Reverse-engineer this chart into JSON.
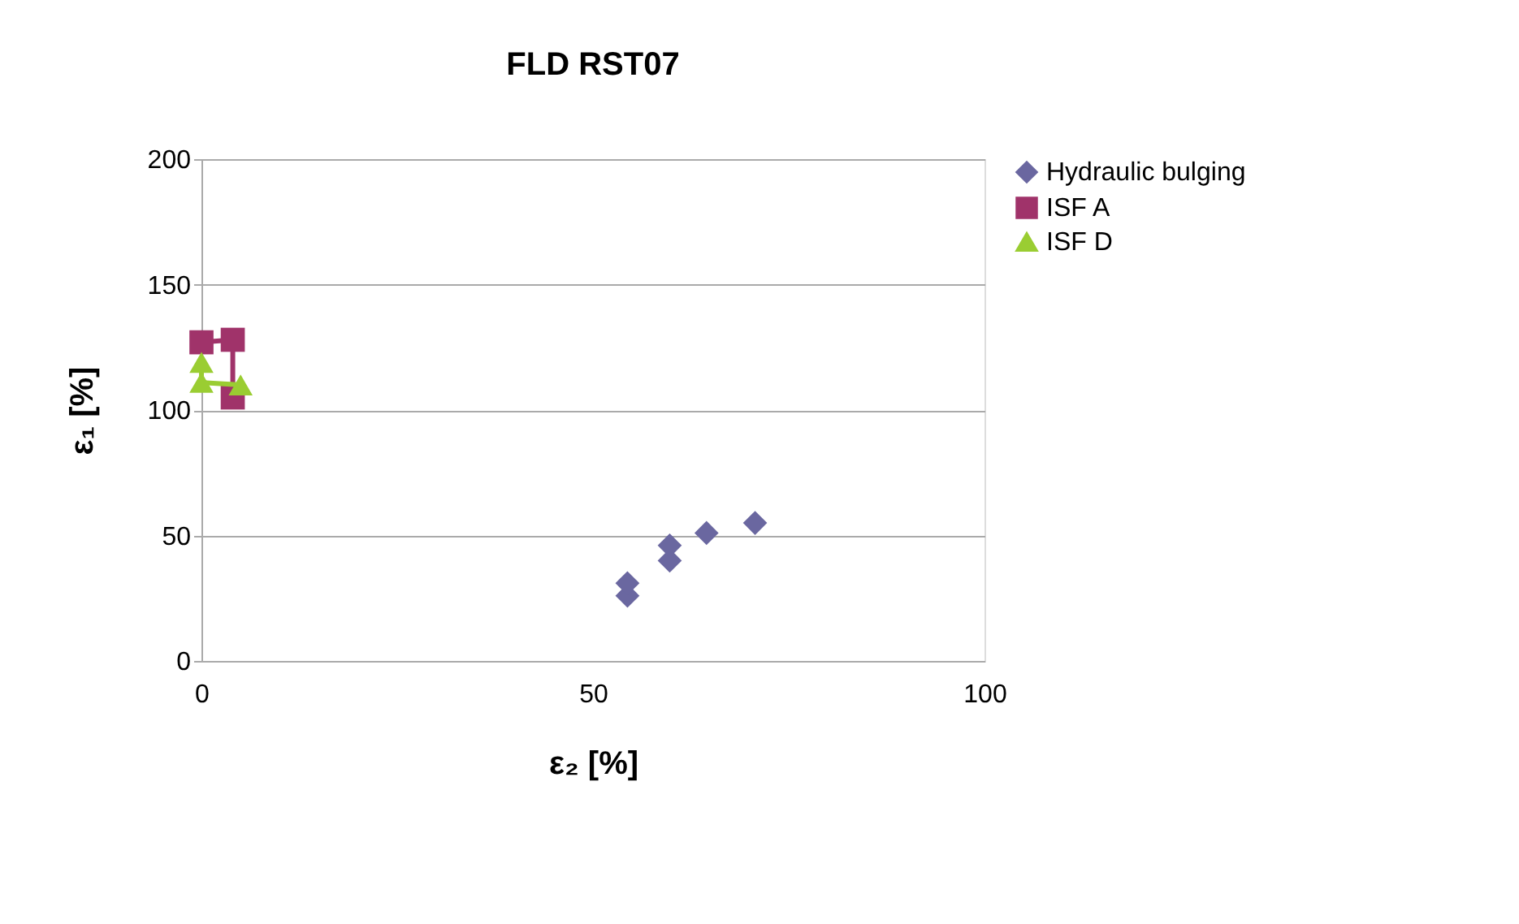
{
  "chart_data": {
    "type": "scatter",
    "title": "FLD RST07",
    "xlabel": "ε₂ [%]",
    "ylabel": "ε₁ [%]",
    "xlim": [
      0,
      100
    ],
    "xticks": [
      0,
      50,
      100
    ],
    "ylim": [
      0,
      200
    ],
    "yticks": [
      0,
      50,
      100,
      150,
      200
    ],
    "grid": "y",
    "legend": "right",
    "series": [
      {
        "name": "Hydraulic bulging",
        "marker": "diamond",
        "color": "#6a67a0",
        "x": [
          54.4,
          54.4,
          59.8,
          59.8,
          64.5,
          70.7
        ],
        "values": [
          26,
          31,
          40,
          46,
          51,
          55
        ]
      },
      {
        "name": "ISF A",
        "type": "line",
        "marker": "square",
        "color": "#a0336a",
        "x": [
          0,
          4,
          4
        ],
        "values": [
          127,
          128,
          105
        ]
      },
      {
        "name": "ISF D",
        "type": "line",
        "marker": "triangle",
        "color": "#9acd32",
        "x": [
          0,
          0,
          5
        ],
        "values": [
          119,
          111,
          110
        ]
      }
    ]
  }
}
